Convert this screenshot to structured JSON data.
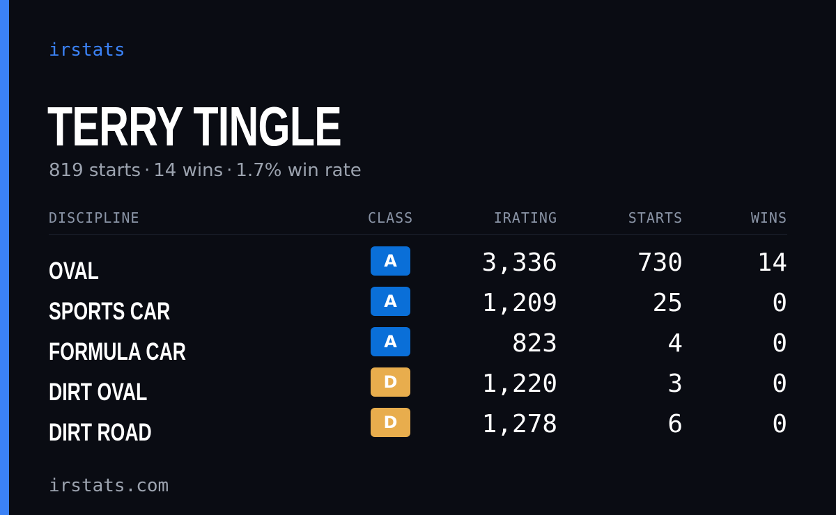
{
  "brand": "irstats",
  "driver": {
    "name": "TERRY TINGLE",
    "starts_text": "819 starts",
    "wins_text": "14 wins",
    "win_rate_text": "1.7% win rate",
    "separator": "·"
  },
  "table": {
    "headers": {
      "discipline": "DISCIPLINE",
      "class": "CLASS",
      "irating": "IRATING",
      "starts": "STARTS",
      "wins": "WINS"
    },
    "rows": [
      {
        "discipline": "OVAL",
        "class": "A",
        "class_color": "#0a6fd8",
        "irating": "3,336",
        "starts": "730",
        "wins": "14"
      },
      {
        "discipline": "SPORTS CAR",
        "class": "A",
        "class_color": "#0a6fd8",
        "irating": "1,209",
        "starts": "25",
        "wins": "0"
      },
      {
        "discipline": "FORMULA CAR",
        "class": "A",
        "class_color": "#0a6fd8",
        "irating": "823",
        "starts": "4",
        "wins": "0"
      },
      {
        "discipline": "DIRT OVAL",
        "class": "D",
        "class_color": "#e8ad4d",
        "irating": "1,220",
        "starts": "3",
        "wins": "0"
      },
      {
        "discipline": "DIRT ROAD",
        "class": "D",
        "class_color": "#e8ad4d",
        "irating": "1,278",
        "starts": "6",
        "wins": "0"
      }
    ]
  },
  "footer": "irstats.com",
  "colors": {
    "accent": "#3b82f6",
    "background": "#0a0c13",
    "muted_text": "#9ca3af"
  }
}
